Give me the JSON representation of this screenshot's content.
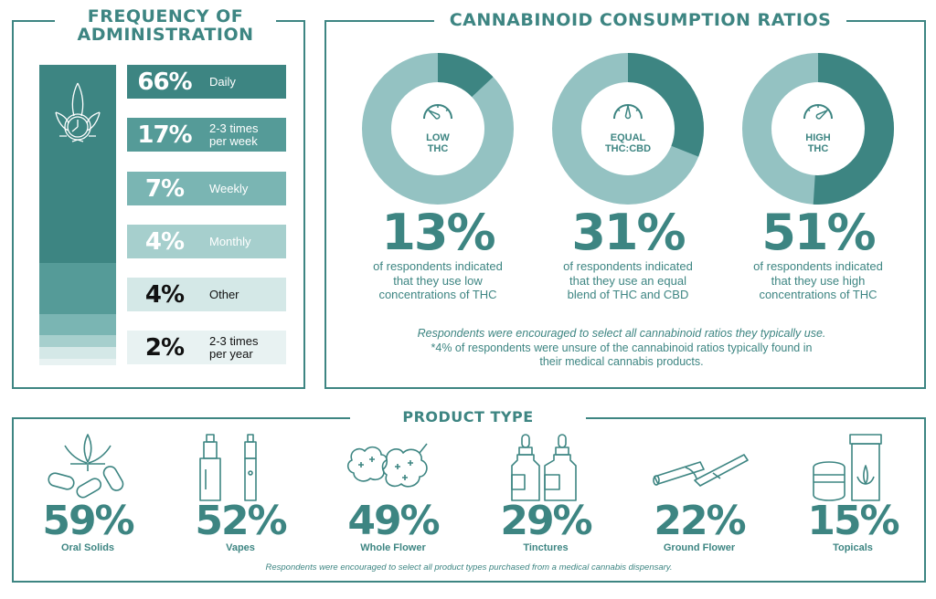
{
  "colors": {
    "accent": "#3d8582",
    "light": "#94c2c2",
    "shades": [
      "#3d8582",
      "#559b98",
      "#7ab5b3",
      "#a6cfcd",
      "#d4e8e7",
      "#e8f2f2"
    ]
  },
  "frequency": {
    "title_line1": "FREQUENCY OF",
    "title_line2": "ADMINISTRATION",
    "icon": "cannabis-clock-icon",
    "rows": [
      {
        "pct": "66%",
        "label1": "Daily",
        "label2": ""
      },
      {
        "pct": "17%",
        "label1": "2-3 times",
        "label2": "per week"
      },
      {
        "pct": "7%",
        "label1": "Weekly",
        "label2": ""
      },
      {
        "pct": "4%",
        "label1": "Monthly",
        "label2": ""
      },
      {
        "pct": "4%",
        "label1": "Other",
        "label2": ""
      },
      {
        "pct": "2%",
        "label1": "2-3 times",
        "label2": "per year"
      }
    ]
  },
  "ratios": {
    "title": "CANNABINOID CONSUMPTION RATIOS",
    "items": [
      {
        "inner1": "LOW",
        "inner2": "THC",
        "pct": "13%",
        "d1": "of respondents indicated",
        "d2": "that they use low",
        "d3": "concentrations of THC"
      },
      {
        "inner1": "EQUAL",
        "inner2": "THC:CBD",
        "pct": "31%",
        "d1": "of respondents indicated",
        "d2": "that they use an equal",
        "d3": "blend of THC and CBD"
      },
      {
        "inner1": "HIGH",
        "inner2": "THC",
        "pct": "51%",
        "d1": "of respondents indicated",
        "d2": "that they use high",
        "d3": "concentrations of THC"
      }
    ],
    "note1": "Respondents were encouraged to select all cannabinoid ratios they typically use.",
    "note2": "*4% of respondents were unsure of the cannabinoid ratios typically found in",
    "note3": "their medical cannabis products."
  },
  "products": {
    "title": "PRODUCT TYPE",
    "items": [
      {
        "pct": "59%",
        "label": "Oral Solids",
        "icon": "pills-leaf-icon"
      },
      {
        "pct": "52%",
        "label": "Vapes",
        "icon": "vape-pen-icon"
      },
      {
        "pct": "49%",
        "label": "Whole Flower",
        "icon": "flower-bud-icon"
      },
      {
        "pct": "29%",
        "label": "Tinctures",
        "icon": "dropper-bottle-icon"
      },
      {
        "pct": "22%",
        "label": "Ground Flower",
        "icon": "joint-icon"
      },
      {
        "pct": "15%",
        "label": "Topicals",
        "icon": "cream-tube-icon"
      }
    ],
    "note": "Respondents were encouraged to select all product types purchased from a medical cannabis dispensary."
  },
  "chart_data": [
    {
      "type": "bar",
      "stacked": true,
      "title": "FREQUENCY OF ADMINISTRATION",
      "categories": [
        "Daily",
        "2-3 times per week",
        "Weekly",
        "Monthly",
        "Other",
        "2-3 times per year"
      ],
      "values": [
        66,
        17,
        7,
        4,
        4,
        2
      ]
    },
    {
      "type": "pie",
      "donut": true,
      "title": "CANNABINOID CONSUMPTION RATIOS",
      "categories": [
        "LOW THC",
        "EQUAL THC:CBD",
        "HIGH THC"
      ],
      "values": [
        13,
        31,
        51
      ]
    },
    {
      "type": "table",
      "title": "PRODUCT TYPE",
      "categories": [
        "Oral Solids",
        "Vapes",
        "Whole Flower",
        "Tinctures",
        "Ground Flower",
        "Topicals"
      ],
      "values": [
        59,
        52,
        49,
        29,
        22,
        15
      ]
    }
  ]
}
